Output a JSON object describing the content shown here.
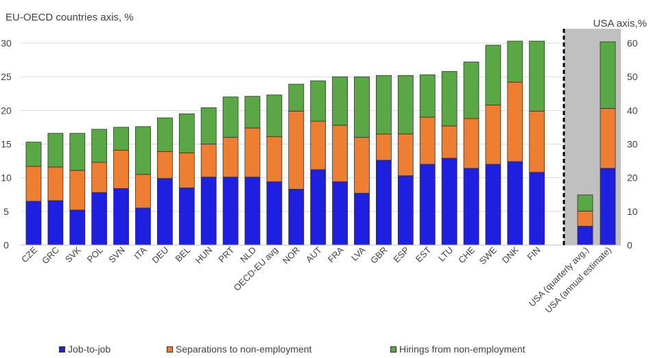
{
  "chart_data": {
    "type": "bar",
    "stacked": true,
    "left_axis_title": "EU-OECD countries  axis, %",
    "right_axis_title": "USA axis,%",
    "left_ylim": [
      0,
      30
    ],
    "left_yticks": [
      "0",
      "5",
      "10",
      "15",
      "20",
      "25",
      "30"
    ],
    "right_ylim": [
      0,
      60
    ],
    "right_yticks": [
      "0",
      "10",
      "20",
      "30",
      "40",
      "50",
      "60"
    ],
    "categories": [
      "CZE",
      "GRC",
      "SVK",
      "POL",
      "SVN",
      "ITA",
      "DEU",
      "BEL",
      "HUN",
      "PRT",
      "NLD",
      "OECD-EU avg",
      "NOR",
      "AUT",
      "FRA",
      "LVA",
      "GBR",
      "ESP",
      "EST",
      "LTU",
      "CHE",
      "SWE",
      "DNK",
      "FIN"
    ],
    "series": [
      {
        "name": "Job-to-job",
        "color": "#1f1fe0",
        "values": [
          6.5,
          6.6,
          5.2,
          7.8,
          8.4,
          5.5,
          9.9,
          8.5,
          10.1,
          10.1,
          10.1,
          9.4,
          8.3,
          11.2,
          9.4,
          7.7,
          12.6,
          10.3,
          12.0,
          12.9,
          11.4,
          12.0,
          12.4,
          10.8
        ]
      },
      {
        "name": "Separations to non-employment",
        "color": "#ed7d31",
        "values": [
          5.2,
          5.0,
          5.9,
          4.5,
          5.7,
          5.0,
          4.0,
          5.2,
          4.9,
          5.9,
          7.3,
          6.7,
          11.6,
          7.2,
          8.4,
          8.3,
          3.9,
          6.2,
          7.0,
          4.8,
          7.4,
          8.8,
          11.8,
          9.1
        ]
      },
      {
        "name": "Hirings from non-employment",
        "color": "#5aa845",
        "values": [
          3.6,
          5.0,
          5.5,
          4.9,
          3.4,
          7.1,
          5.0,
          5.8,
          5.4,
          6.0,
          4.7,
          6.2,
          4.0,
          6.0,
          7.2,
          9.0,
          8.7,
          8.7,
          6.3,
          8.1,
          8.4,
          8.9,
          6.1,
          10.4
        ]
      }
    ],
    "usa_categories": [
      "USA (quarterly avg.)",
      "USA (annual estimate)"
    ],
    "usa_series": [
      {
        "name": "Job-to-job",
        "values": [
          5.6,
          22.8
        ]
      },
      {
        "name": "Separations to non-employment",
        "values": [
          4.5,
          17.8
        ]
      },
      {
        "name": "Hirings from non-employment",
        "values": [
          4.8,
          19.8
        ]
      }
    ],
    "legend_position": "bottom",
    "grid": true
  }
}
